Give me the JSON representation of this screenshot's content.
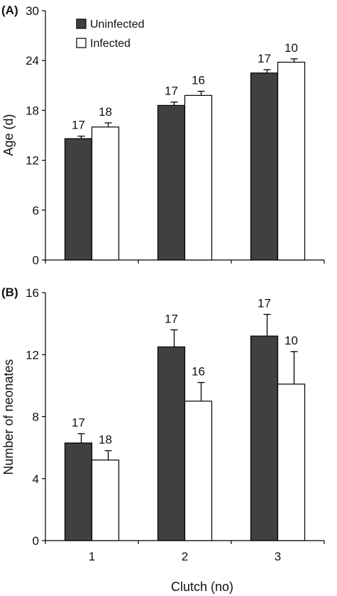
{
  "chart_data": [
    {
      "panel": "(A)",
      "type": "bar",
      "categories": [
        "1",
        "2",
        "3"
      ],
      "ylabel": "Age (d)",
      "xlabel": "",
      "ylim": [
        0,
        30
      ],
      "yticks": [
        "0",
        "6",
        "12",
        "18",
        "24",
        "30"
      ],
      "legend": {
        "placement": "top-left"
      },
      "grid": false,
      "series": [
        {
          "name": "Uninfected",
          "color": "#404040",
          "values": [
            14.6,
            18.6,
            22.5
          ],
          "errors": [
            0.3,
            0.4,
            0.4
          ],
          "n": [
            "17",
            "17",
            "17"
          ]
        },
        {
          "name": "Infected",
          "color": "#ffffff",
          "values": [
            16.0,
            19.8,
            23.8
          ],
          "errors": [
            0.5,
            0.5,
            0.4
          ],
          "n": [
            "18",
            "16",
            "10"
          ]
        }
      ]
    },
    {
      "panel": "(B)",
      "type": "bar",
      "categories": [
        "1",
        "2",
        "3"
      ],
      "ylabel": "Number of neonates",
      "xlabel": "Clutch (no)",
      "ylim": [
        0,
        16
      ],
      "yticks": [
        "0",
        "4",
        "8",
        "12",
        "16"
      ],
      "grid": false,
      "series": [
        {
          "name": "Uninfected",
          "color": "#404040",
          "values": [
            6.3,
            12.5,
            13.2
          ],
          "errors": [
            0.6,
            1.1,
            1.4
          ],
          "n": [
            "17",
            "17",
            "17"
          ]
        },
        {
          "name": "Infected",
          "color": "#ffffff",
          "values": [
            5.2,
            9.0,
            10.1
          ],
          "errors": [
            0.6,
            1.2,
            2.1
          ],
          "n": [
            "18",
            "16",
            "10"
          ]
        }
      ]
    }
  ]
}
